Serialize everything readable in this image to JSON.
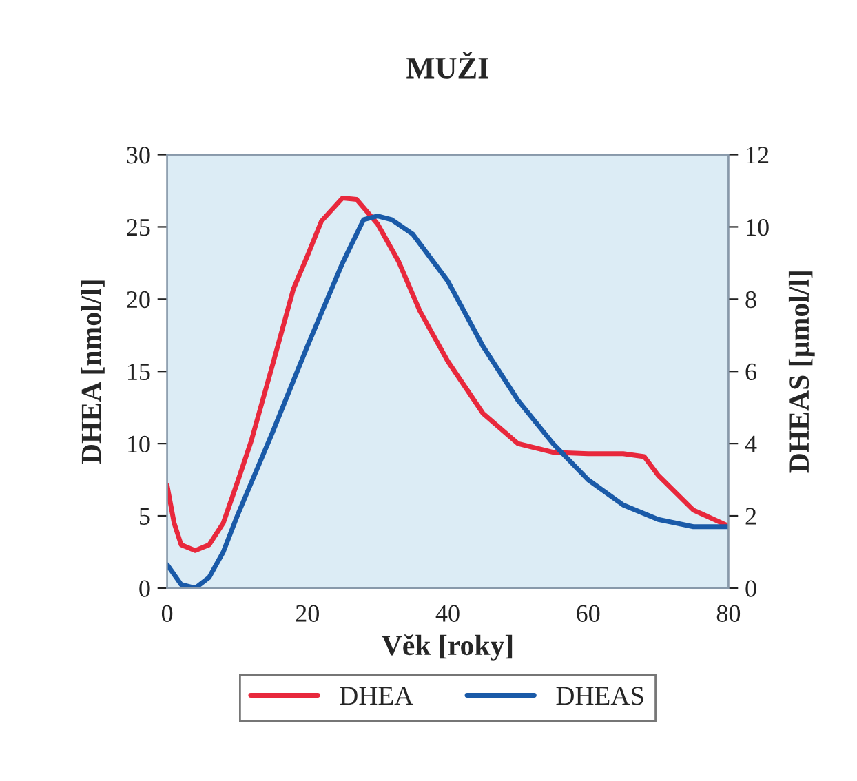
{
  "chart_data": {
    "type": "line",
    "title": "MUŽI",
    "xlabel": "Věk [roky]",
    "ylabel": "DHEA [nmol/l]",
    "y2label": "DHEAS [µmol/l]",
    "xlim": [
      0,
      80
    ],
    "xticks": [
      0,
      20,
      40,
      60,
      80
    ],
    "ylim": [
      0,
      30
    ],
    "yticks": [
      0,
      5,
      10,
      15,
      20,
      25,
      30
    ],
    "y2lim": [
      0,
      12
    ],
    "y2ticks": [
      0,
      2,
      4,
      6,
      8,
      10,
      12
    ],
    "grid": false,
    "legend": "bottom",
    "marker": "none",
    "line_style": "solid",
    "series": [
      {
        "name": "DHEA",
        "color": "#e8283c",
        "x": [
          0,
          1,
          2,
          4,
          6,
          8,
          10,
          12,
          15,
          18,
          20,
          22,
          25,
          27,
          30,
          33,
          36,
          40,
          45,
          50,
          55,
          60,
          65,
          68,
          70,
          75,
          80
        ],
        "values": [
          7.1,
          4.5,
          3.0,
          2.6,
          3.0,
          4.5,
          7.3,
          10.2,
          15.4,
          20.7,
          23.0,
          25.4,
          27.0,
          26.9,
          25.2,
          22.6,
          19.2,
          15.7,
          12.1,
          10.0,
          9.4,
          9.3,
          9.3,
          9.1,
          7.8,
          5.4,
          4.3
        ]
      },
      {
        "name": "DHEAS",
        "color": "#1a5aa8",
        "axis": "y2",
        "x": [
          0,
          2,
          4,
          6,
          8,
          10,
          15,
          20,
          25,
          28,
          30,
          32,
          35,
          40,
          45,
          50,
          55,
          60,
          65,
          70,
          75,
          80
        ],
        "values": [
          0.65,
          0.1,
          0,
          0.3,
          1.0,
          2.0,
          4.3,
          6.7,
          9.0,
          10.2,
          10.3,
          10.2,
          9.8,
          8.5,
          6.7,
          5.2,
          4.0,
          3.0,
          2.3,
          1.9,
          1.7,
          1.7
        ]
      }
    ]
  }
}
